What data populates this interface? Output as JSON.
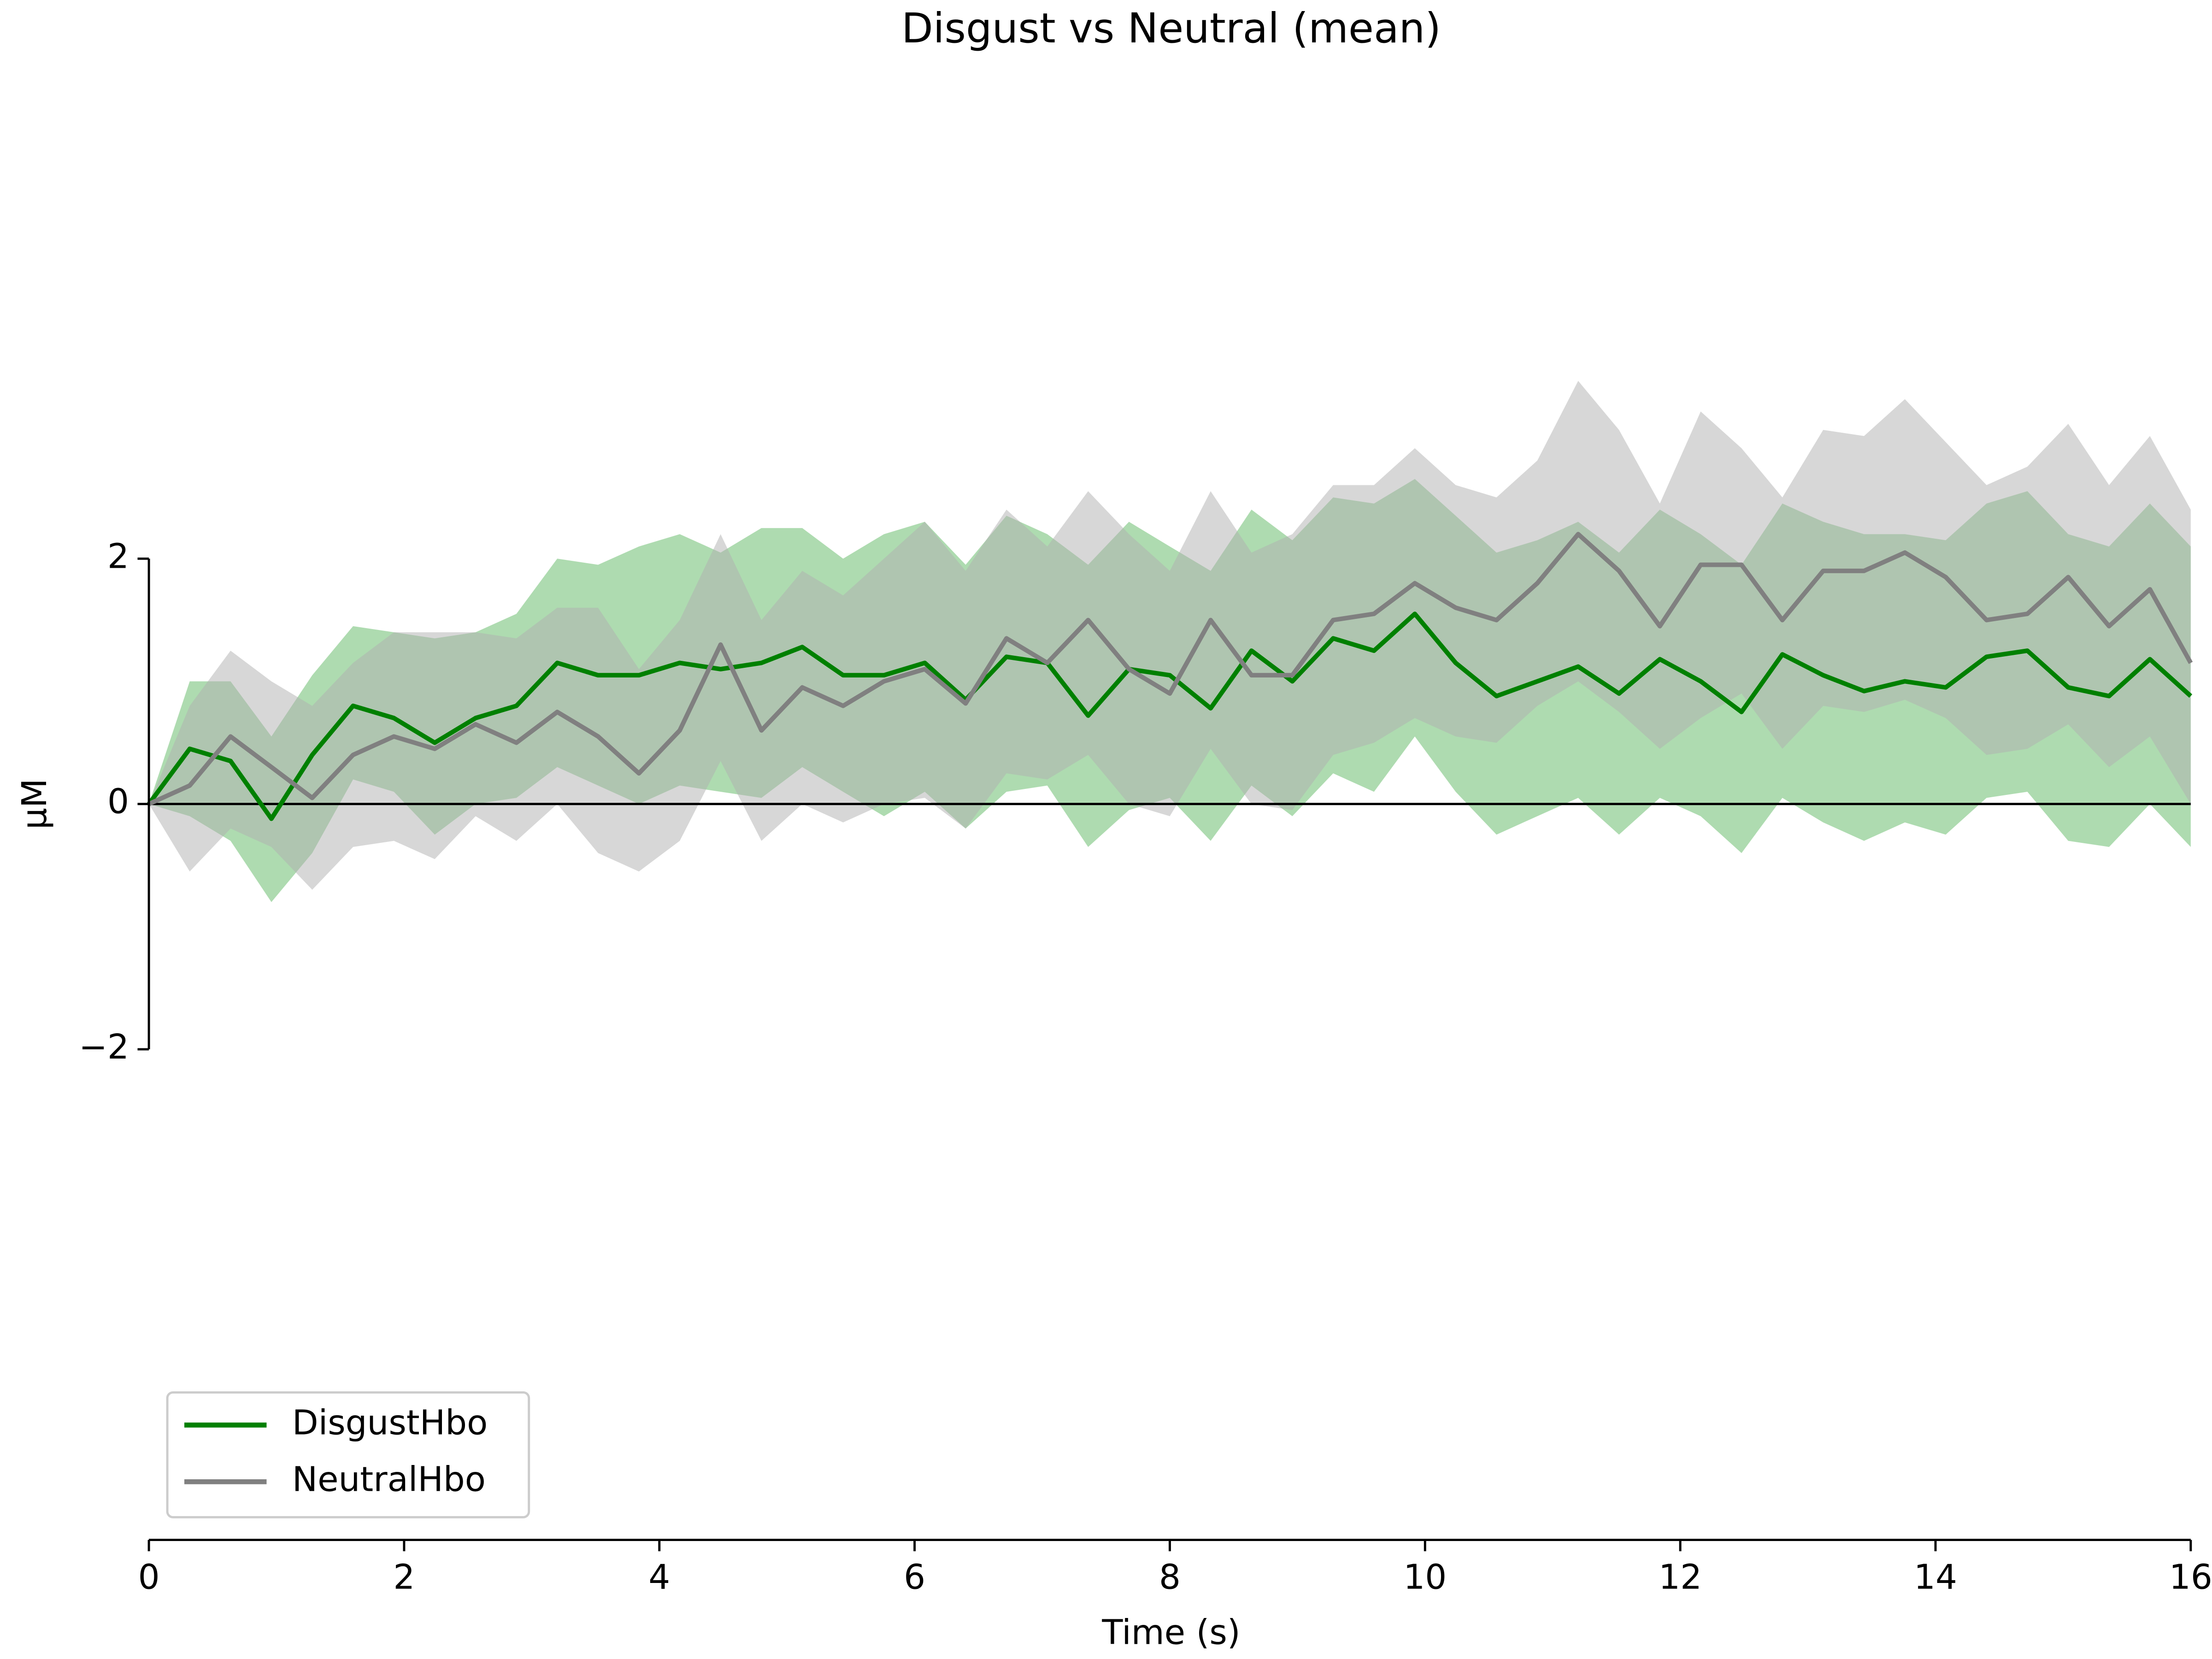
{
  "chart_data": {
    "type": "line",
    "title": "Disgust vs Neutral (mean)",
    "x_label": "Time (s)",
    "y_label": "µM",
    "x": [
      0,
      0.32,
      0.64,
      0.96,
      1.28,
      1.6,
      1.92,
      2.24,
      2.56,
      2.88,
      3.2,
      3.52,
      3.84,
      4.16,
      4.48,
      4.8,
      5.12,
      5.44,
      5.76,
      6.08,
      6.4,
      6.72,
      7.04,
      7.36,
      7.68,
      8.0,
      8.32,
      8.64,
      8.96,
      9.28,
      9.6,
      9.92,
      10.24,
      10.56,
      10.88,
      11.2,
      11.52,
      11.84,
      12.16,
      12.48,
      12.8,
      13.12,
      13.44,
      13.76,
      14.08,
      14.4,
      14.72,
      15.04,
      15.36,
      15.68,
      16
    ],
    "series": [
      {
        "name": "DisgustHbo",
        "color": "#008000",
        "band_color": "#4caf50",
        "values": [
          0,
          0.45,
          0.35,
          -0.12,
          0.4,
          0.8,
          0.7,
          0.5,
          0.7,
          0.8,
          1.15,
          1.05,
          1.05,
          1.15,
          1.1,
          1.15,
          1.28,
          1.05,
          1.05,
          1.15,
          0.85,
          1.2,
          1.15,
          0.72,
          1.1,
          1.05,
          0.78,
          1.25,
          1.0,
          1.35,
          1.25,
          1.55,
          1.15,
          0.88,
          1.0,
          1.12,
          0.9,
          1.18,
          1.0,
          0.75,
          1.22,
          1.05,
          0.92,
          1.0,
          0.95,
          1.2,
          1.25,
          0.95,
          0.88,
          1.18,
          0.88
        ],
        "upper": [
          0,
          1.0,
          1.0,
          0.55,
          1.05,
          1.45,
          1.4,
          1.35,
          1.4,
          1.55,
          2.0,
          1.95,
          2.1,
          2.2,
          2.05,
          2.25,
          2.25,
          2.0,
          2.2,
          2.3,
          1.95,
          2.35,
          2.2,
          1.95,
          2.3,
          2.1,
          1.9,
          2.4,
          2.15,
          2.5,
          2.45,
          2.65,
          2.35,
          2.05,
          2.15,
          2.3,
          2.05,
          2.4,
          2.2,
          1.95,
          2.45,
          2.3,
          2.2,
          2.2,
          2.15,
          2.45,
          2.55,
          2.2,
          2.1,
          2.45,
          2.1
        ],
        "lower": [
          0,
          -0.1,
          -0.3,
          -0.8,
          -0.4,
          0.2,
          0.1,
          -0.25,
          0.0,
          0.05,
          0.3,
          0.15,
          0.0,
          0.15,
          0.1,
          0.05,
          0.3,
          0.1,
          -0.1,
          0.1,
          -0.2,
          0.1,
          0.15,
          -0.35,
          -0.05,
          0.05,
          -0.3,
          0.15,
          -0.1,
          0.25,
          0.1,
          0.55,
          0.1,
          -0.25,
          -0.1,
          0.05,
          -0.25,
          0.05,
          -0.1,
          -0.4,
          0.05,
          -0.15,
          -0.3,
          -0.15,
          -0.25,
          0.05,
          0.1,
          -0.3,
          -0.35,
          0.0,
          -0.35
        ]
      },
      {
        "name": "NeutralHbo",
        "color": "#808080",
        "band_color": "#b0b0b0",
        "values": [
          0,
          0.15,
          0.55,
          0.3,
          0.05,
          0.4,
          0.55,
          0.45,
          0.65,
          0.5,
          0.75,
          0.55,
          0.25,
          0.6,
          1.3,
          0.6,
          0.95,
          0.8,
          1.0,
          1.1,
          0.82,
          1.35,
          1.15,
          1.5,
          1.1,
          0.9,
          1.5,
          1.05,
          1.05,
          1.5,
          1.55,
          1.8,
          1.6,
          1.5,
          1.8,
          2.2,
          1.9,
          1.45,
          1.95,
          1.95,
          1.5,
          1.9,
          1.9,
          2.05,
          1.85,
          1.5,
          1.55,
          1.85,
          1.45,
          1.75,
          1.15
        ],
        "upper": [
          0,
          0.8,
          1.25,
          1.0,
          0.8,
          1.15,
          1.4,
          1.4,
          1.4,
          1.35,
          1.6,
          1.6,
          1.1,
          1.5,
          2.2,
          1.5,
          1.9,
          1.7,
          2.0,
          2.3,
          1.9,
          2.4,
          2.1,
          2.55,
          2.2,
          1.9,
          2.55,
          2.05,
          2.2,
          2.6,
          2.6,
          2.9,
          2.6,
          2.5,
          2.8,
          3.45,
          3.05,
          2.45,
          3.2,
          2.9,
          2.5,
          3.05,
          3.0,
          3.3,
          2.95,
          2.6,
          2.75,
          3.1,
          2.6,
          3.0,
          2.4
        ],
        "lower": [
          0,
          -0.55,
          -0.2,
          -0.35,
          -0.7,
          -0.35,
          -0.3,
          -0.45,
          -0.1,
          -0.3,
          0.0,
          -0.4,
          -0.55,
          -0.3,
          0.35,
          -0.3,
          0.0,
          -0.15,
          0.0,
          0.05,
          -0.2,
          0.25,
          0.2,
          0.4,
          0.0,
          -0.1,
          0.45,
          0.0,
          -0.05,
          0.4,
          0.5,
          0.7,
          0.55,
          0.5,
          0.8,
          1.0,
          0.75,
          0.45,
          0.7,
          0.9,
          0.45,
          0.8,
          0.75,
          0.85,
          0.7,
          0.4,
          0.45,
          0.65,
          0.3,
          0.55,
          0.0
        ]
      }
    ],
    "xlim": [
      0,
      16
    ],
    "xticks": [
      0,
      2,
      4,
      6,
      8,
      10,
      12,
      14,
      16
    ],
    "ylim": [
      -6,
      6
    ],
    "yticks": [
      {
        "value": -2,
        "label": "−2"
      },
      0,
      2
    ],
    "legend": "lower left"
  }
}
